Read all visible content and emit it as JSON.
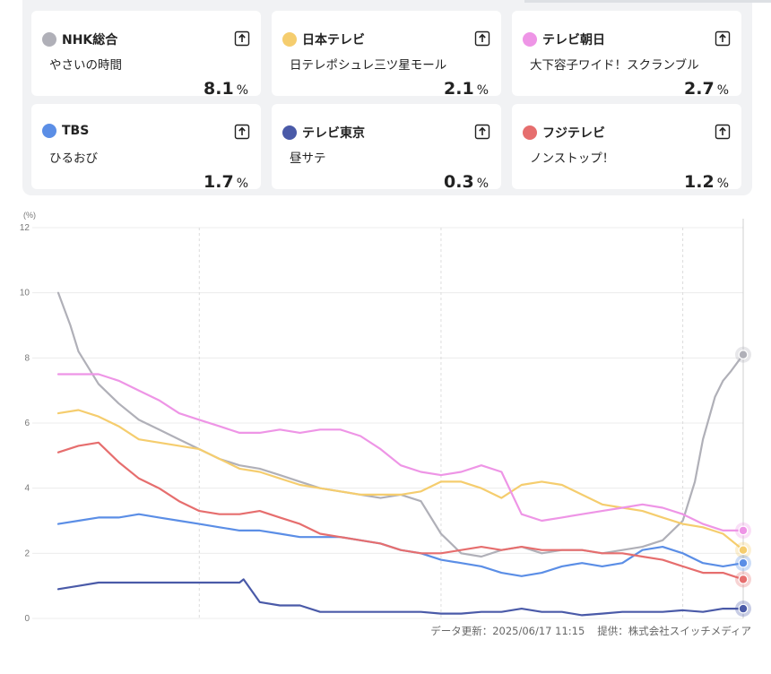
{
  "cards": [
    {
      "channel": "NHK総合",
      "program": "やさいの時間",
      "rating": "8.1",
      "unit": "%",
      "color": "#b0b0b8",
      "icon": "share-icon"
    },
    {
      "channel": "日本テレビ",
      "program": "日テレポシュレ三ツ星モール",
      "rating": "2.1",
      "unit": "%",
      "color": "#f5cd6e",
      "icon": "share-icon"
    },
    {
      "channel": "テレビ朝日",
      "program": "大下容子ワイド！スクランブル",
      "rating": "2.7",
      "unit": "%",
      "color": "#ee95e6",
      "icon": "share-icon"
    },
    {
      "channel": "TBS",
      "program": "ひるおび",
      "rating": "1.7",
      "unit": "%",
      "color": "#5b8ee6",
      "icon": "share-icon"
    },
    {
      "channel": "テレビ東京",
      "program": "昼サテ",
      "rating": "0.3",
      "unit": "%",
      "color": "#4a5aa8",
      "icon": "share-icon"
    },
    {
      "channel": "フジテレビ",
      "program": "ノンストップ！",
      "rating": "1.2",
      "unit": "%",
      "color": "#e66e6e",
      "icon": "share-icon"
    }
  ],
  "chart_data": {
    "type": "line",
    "ylabel": "(%)",
    "ylim": [
      0,
      12
    ],
    "yticks": [
      "0",
      "2",
      "4",
      "6",
      "8",
      "10",
      "12"
    ],
    "xlim": [
      "08:25",
      "11:15"
    ],
    "xticks": [
      "09:00",
      "10:00",
      "11:00"
    ],
    "grid": true,
    "series": [
      {
        "name": "NHK総合",
        "color": "#b0b0b8",
        "x": [
          "08:25",
          "08:28",
          "08:30",
          "08:35",
          "08:40",
          "08:45",
          "08:50",
          "08:55",
          "09:00",
          "09:05",
          "09:10",
          "09:15",
          "09:20",
          "09:25",
          "09:30",
          "09:35",
          "09:40",
          "09:45",
          "09:50",
          "09:55",
          "10:00",
          "10:05",
          "10:10",
          "10:15",
          "10:20",
          "10:25",
          "10:30",
          "10:35",
          "10:40",
          "10:45",
          "10:50",
          "10:55",
          "11:00",
          "11:03",
          "11:05",
          "11:08",
          "11:10",
          "11:12",
          "11:15"
        ],
        "values": [
          10.0,
          9.0,
          8.2,
          7.2,
          6.6,
          6.1,
          5.8,
          5.5,
          5.2,
          4.9,
          4.7,
          4.6,
          4.4,
          4.2,
          4.0,
          3.9,
          3.8,
          3.7,
          3.8,
          3.6,
          2.6,
          2.0,
          1.9,
          2.1,
          2.2,
          2.0,
          2.1,
          2.1,
          2.0,
          2.1,
          2.2,
          2.4,
          3.0,
          4.2,
          5.5,
          6.8,
          7.3,
          7.6,
          8.1
        ]
      },
      {
        "name": "日本テレビ",
        "color": "#f5cd6e",
        "x": [
          "08:25",
          "08:30",
          "08:35",
          "08:40",
          "08:45",
          "08:50",
          "08:55",
          "09:00",
          "09:05",
          "09:10",
          "09:15",
          "09:20",
          "09:25",
          "09:30",
          "09:35",
          "09:40",
          "09:45",
          "09:50",
          "09:55",
          "10:00",
          "10:05",
          "10:10",
          "10:15",
          "10:20",
          "10:25",
          "10:30",
          "10:35",
          "10:40",
          "10:45",
          "10:50",
          "10:55",
          "11:00",
          "11:05",
          "11:10",
          "11:15"
        ],
        "values": [
          6.3,
          6.4,
          6.2,
          5.9,
          5.5,
          5.4,
          5.3,
          5.2,
          4.9,
          4.6,
          4.5,
          4.3,
          4.1,
          4.0,
          3.9,
          3.8,
          3.8,
          3.8,
          3.9,
          4.2,
          4.2,
          4.0,
          3.7,
          4.1,
          4.2,
          4.1,
          3.8,
          3.5,
          3.4,
          3.3,
          3.1,
          2.9,
          2.8,
          2.6,
          2.1
        ]
      },
      {
        "name": "テレビ朝日",
        "color": "#ee95e6",
        "x": [
          "08:25",
          "08:30",
          "08:35",
          "08:40",
          "08:45",
          "08:50",
          "08:55",
          "09:00",
          "09:05",
          "09:10",
          "09:15",
          "09:20",
          "09:25",
          "09:30",
          "09:35",
          "09:40",
          "09:45",
          "09:50",
          "09:55",
          "10:00",
          "10:05",
          "10:10",
          "10:15",
          "10:20",
          "10:25",
          "10:30",
          "10:35",
          "10:40",
          "10:45",
          "10:50",
          "10:55",
          "11:00",
          "11:05",
          "11:10",
          "11:15"
        ],
        "values": [
          7.5,
          7.5,
          7.5,
          7.3,
          7.0,
          6.7,
          6.3,
          6.1,
          5.9,
          5.7,
          5.7,
          5.8,
          5.7,
          5.8,
          5.8,
          5.6,
          5.2,
          4.7,
          4.5,
          4.4,
          4.5,
          4.7,
          4.5,
          3.2,
          3.0,
          3.1,
          3.2,
          3.3,
          3.4,
          3.5,
          3.4,
          3.2,
          2.9,
          2.7,
          2.7
        ]
      },
      {
        "name": "TBS",
        "color": "#5b8ee6",
        "x": [
          "08:25",
          "08:30",
          "08:35",
          "08:40",
          "08:45",
          "08:50",
          "08:55",
          "09:00",
          "09:05",
          "09:10",
          "09:15",
          "09:20",
          "09:25",
          "09:30",
          "09:35",
          "09:40",
          "09:45",
          "09:50",
          "09:55",
          "10:00",
          "10:05",
          "10:10",
          "10:15",
          "10:20",
          "10:25",
          "10:30",
          "10:35",
          "10:40",
          "10:45",
          "10:50",
          "10:55",
          "11:00",
          "11:05",
          "11:10",
          "11:15"
        ],
        "values": [
          2.9,
          3.0,
          3.1,
          3.1,
          3.2,
          3.1,
          3.0,
          2.9,
          2.8,
          2.7,
          2.7,
          2.6,
          2.5,
          2.5,
          2.5,
          2.4,
          2.3,
          2.1,
          2.0,
          1.8,
          1.7,
          1.6,
          1.4,
          1.3,
          1.4,
          1.6,
          1.7,
          1.6,
          1.7,
          2.1,
          2.2,
          2.0,
          1.7,
          1.6,
          1.7
        ]
      },
      {
        "name": "テレビ東京",
        "color": "#4a5aa8",
        "x": [
          "08:25",
          "08:30",
          "08:35",
          "08:40",
          "08:45",
          "08:50",
          "08:55",
          "09:00",
          "09:05",
          "09:10",
          "09:11",
          "09:15",
          "09:20",
          "09:25",
          "09:30",
          "09:35",
          "09:40",
          "09:45",
          "09:50",
          "09:55",
          "10:00",
          "10:05",
          "10:10",
          "10:15",
          "10:20",
          "10:25",
          "10:30",
          "10:35",
          "10:40",
          "10:45",
          "10:50",
          "10:55",
          "11:00",
          "11:05",
          "11:10",
          "11:15"
        ],
        "values": [
          0.9,
          1.0,
          1.1,
          1.1,
          1.1,
          1.1,
          1.1,
          1.1,
          1.1,
          1.1,
          1.2,
          0.5,
          0.4,
          0.4,
          0.2,
          0.2,
          0.2,
          0.2,
          0.2,
          0.2,
          0.15,
          0.15,
          0.2,
          0.2,
          0.3,
          0.2,
          0.2,
          0.1,
          0.15,
          0.2,
          0.2,
          0.2,
          0.25,
          0.2,
          0.3,
          0.3
        ]
      },
      {
        "name": "フジテレビ",
        "color": "#e66e6e",
        "x": [
          "08:25",
          "08:30",
          "08:35",
          "08:40",
          "08:45",
          "08:50",
          "08:55",
          "09:00",
          "09:05",
          "09:10",
          "09:15",
          "09:20",
          "09:25",
          "09:30",
          "09:35",
          "09:40",
          "09:45",
          "09:50",
          "09:55",
          "10:00",
          "10:05",
          "10:10",
          "10:15",
          "10:20",
          "10:25",
          "10:30",
          "10:35",
          "10:40",
          "10:45",
          "10:50",
          "10:55",
          "11:00",
          "11:05",
          "11:10",
          "11:15"
        ],
        "values": [
          5.1,
          5.3,
          5.4,
          4.8,
          4.3,
          4.0,
          3.6,
          3.3,
          3.2,
          3.2,
          3.3,
          3.1,
          2.9,
          2.6,
          2.5,
          2.4,
          2.3,
          2.1,
          2.0,
          2.0,
          2.1,
          2.2,
          2.1,
          2.2,
          2.1,
          2.1,
          2.1,
          2.0,
          2.0,
          1.9,
          1.8,
          1.6,
          1.4,
          1.4,
          1.2
        ]
      }
    ]
  },
  "footer": {
    "updated": "データ更新：2025/06/17 11:15",
    "provider": "提供：株式会社スイッチメディア"
  }
}
